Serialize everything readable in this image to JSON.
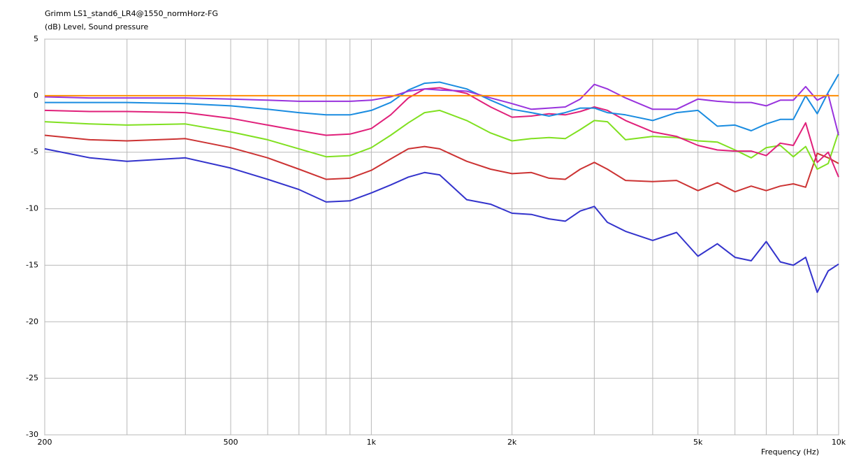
{
  "chart_data": {
    "type": "line",
    "title": "Grimm LS1_stand6_LR4@1550_normHorz-FG",
    "ylabel": "(dB)  Level, Sound pressure",
    "xlabel": "Frequency  (Hz)",
    "xscale": "log",
    "grid": true,
    "xlim": [
      200,
      10000
    ],
    "ylim": [
      -30,
      5
    ],
    "yticks": [
      5,
      0,
      -5,
      -10,
      -15,
      -20,
      -25,
      -30
    ],
    "xticks": [
      200,
      500,
      {
        "value": 1000,
        "label": "1k"
      },
      {
        "value": 2000,
        "label": "2k"
      },
      {
        "value": 5000,
        "label": "5k"
      },
      {
        "value": 10000,
        "label": "10k"
      }
    ],
    "xminor_ticks": [
      300,
      400,
      600,
      700,
      800,
      900,
      3000,
      4000,
      6000,
      7000,
      8000,
      9000
    ],
    "x": [
      200,
      250,
      300,
      400,
      500,
      600,
      700,
      800,
      900,
      1000,
      1100,
      1200,
      1300,
      1400,
      1600,
      1800,
      2000,
      2200,
      2400,
      2600,
      2800,
      3000,
      3200,
      3500,
      4000,
      4500,
      5000,
      5500,
      6000,
      6500,
      7000,
      7500,
      8000,
      8500,
      9000,
      9500,
      10000
    ],
    "series": [
      {
        "color": "#3333cc",
        "values": [
          -4.7,
          -5.5,
          -5.8,
          -5.5,
          -6.4,
          -7.4,
          -8.3,
          -9.4,
          -9.3,
          -8.6,
          -7.9,
          -7.2,
          -6.8,
          -7.0,
          -9.2,
          -9.6,
          -10.4,
          -10.5,
          -10.9,
          -11.1,
          -10.2,
          -9.8,
          -11.2,
          -12.0,
          -12.8,
          -12.1,
          -14.2,
          -13.1,
          -14.3,
          -14.6,
          -12.9,
          -14.7,
          -15.0,
          -14.3,
          -17.4,
          -15.5,
          -14.9
        ]
      },
      {
        "color": "#cc3333",
        "values": [
          -3.5,
          -3.9,
          -4.0,
          -3.8,
          -4.6,
          -5.5,
          -6.5,
          -7.4,
          -7.3,
          -6.6,
          -5.6,
          -4.7,
          -4.5,
          -4.7,
          -5.8,
          -6.5,
          -6.9,
          -6.8,
          -7.3,
          -7.4,
          -6.5,
          -5.9,
          -6.5,
          -7.5,
          -7.6,
          -7.5,
          -8.4,
          -7.7,
          -8.5,
          -8.0,
          -8.4,
          -8.0,
          -7.8,
          -8.1,
          -5.1,
          -5.5,
          -6.0
        ]
      },
      {
        "color": "#80e020",
        "values": [
          -2.3,
          -2.5,
          -2.6,
          -2.5,
          -3.2,
          -3.9,
          -4.7,
          -5.4,
          -5.3,
          -4.6,
          -3.5,
          -2.4,
          -1.5,
          -1.3,
          -2.2,
          -3.3,
          -4.0,
          -3.8,
          -3.7,
          -3.8,
          -3.0,
          -2.2,
          -2.3,
          -3.9,
          -3.6,
          -3.7,
          -4.0,
          -4.1,
          -4.8,
          -5.5,
          -4.6,
          -4.4,
          -5.4,
          -4.5,
          -6.5,
          -6.0,
          -3.2
        ]
      },
      {
        "color": "#e0207a",
        "values": [
          -1.3,
          -1.4,
          -1.4,
          -1.5,
          -2.0,
          -2.6,
          -3.1,
          -3.5,
          -3.4,
          -2.9,
          -1.7,
          -0.2,
          0.6,
          0.7,
          0.2,
          -1.0,
          -1.9,
          -1.8,
          -1.6,
          -1.7,
          -1.4,
          -1.0,
          -1.3,
          -2.2,
          -3.2,
          -3.6,
          -4.4,
          -4.8,
          -4.9,
          -4.9,
          -5.3,
          -4.2,
          -4.4,
          -2.4,
          -5.9,
          -5.0,
          -7.2
        ]
      },
      {
        "color": "#1a8ce0",
        "values": [
          -0.6,
          -0.6,
          -0.6,
          -0.7,
          -0.9,
          -1.2,
          -1.5,
          -1.7,
          -1.7,
          -1.3,
          -0.6,
          0.5,
          1.1,
          1.2,
          0.6,
          -0.4,
          -1.2,
          -1.5,
          -1.8,
          -1.5,
          -1.1,
          -1.1,
          -1.5,
          -1.7,
          -2.2,
          -1.5,
          -1.3,
          -2.7,
          -2.6,
          -3.1,
          -2.5,
          -2.1,
          -2.1,
          0.0,
          -1.6,
          0.3,
          1.9
        ]
      },
      {
        "color": "#9933dd",
        "values": [
          -0.1,
          -0.2,
          -0.2,
          -0.2,
          -0.3,
          -0.4,
          -0.5,
          -0.5,
          -0.5,
          -0.4,
          -0.1,
          0.4,
          0.6,
          0.5,
          0.4,
          -0.2,
          -0.7,
          -1.2,
          -1.1,
          -1.0,
          -0.3,
          1.0,
          0.6,
          -0.2,
          -1.2,
          -1.2,
          -0.3,
          -0.5,
          -0.6,
          -0.6,
          -0.9,
          -0.4,
          -0.4,
          0.8,
          -0.4,
          0.1,
          -3.5
        ]
      },
      {
        "color": "#ff8c00",
        "values": [
          0,
          0,
          0,
          0,
          0,
          0,
          0,
          0,
          0,
          0,
          0,
          0,
          0,
          0,
          0,
          0,
          0,
          0,
          0,
          0,
          0,
          0,
          0,
          0,
          0,
          0,
          0,
          0,
          0,
          0,
          0,
          0,
          0,
          0,
          0,
          0,
          0
        ]
      }
    ]
  }
}
